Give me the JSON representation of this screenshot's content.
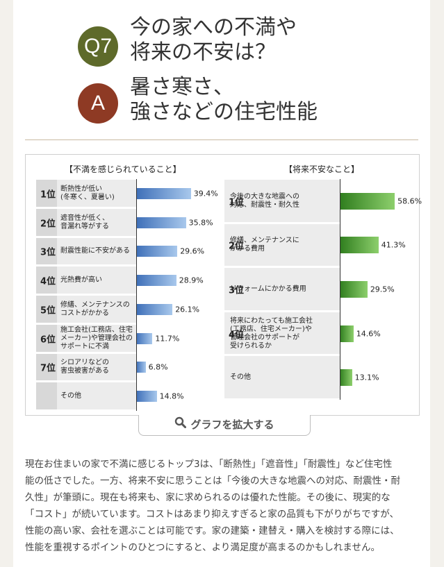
{
  "header": {
    "question_badge": "Q7",
    "question": "今の家への不満や\n将来の不安は？",
    "answer_badge": "A",
    "answer": "暑さ寒さ、\n強さなどの住宅性能"
  },
  "colors": {
    "question_badge": "#5e6a2a",
    "answer_badge": "#8e3a24",
    "left_bars": "#3e6fb8",
    "right_bars": "#2f7d1e"
  },
  "chart_data": [
    {
      "type": "bar",
      "orientation": "horizontal",
      "title": "【不満を感じられていること】",
      "ranks": [
        "1位",
        "2位",
        "3位",
        "4位",
        "5位",
        "6位",
        "7位",
        ""
      ],
      "categories": [
        "断熱性が低い\n(冬寒く、夏暑い)",
        "遮音性が低く、\n音漏れ等がする",
        "耐震性能に不安がある",
        "光熱費が高い",
        "修繕、メンテナンスの\nコストがかかる",
        "施工会社(工務店、住宅\nメーカー)や管理会社の\nサポートに不満",
        "シロアリなどの\n害虫被害がある",
        "その他"
      ],
      "values": [
        39.4,
        35.8,
        29.6,
        28.9,
        26.1,
        11.7,
        6.8,
        14.8
      ],
      "value_labels": [
        "39.4%",
        "35.8%",
        "29.6%",
        "28.9%",
        "26.1%",
        "11.7%",
        "6.8%",
        "14.8%"
      ],
      "unit": "%"
    },
    {
      "type": "bar",
      "orientation": "horizontal",
      "title": "【将来不安なこと】",
      "ranks": [
        "1位",
        "2位",
        "3位",
        "4位",
        ""
      ],
      "categories": [
        "今後の大きな地震への\n対応、耐震性・耐久性",
        "修繕、メンテナンスに\nかかる費用",
        "リフォームにかかる費用",
        "将来にわたっても施工会社\n(工務店、住宅メーカー)や\n管理会社のサポートが\n受けられるか",
        "その他"
      ],
      "values": [
        58.6,
        41.3,
        29.5,
        14.6,
        13.1
      ],
      "value_labels": [
        "58.6%",
        "41.3%",
        "29.5%",
        "14.6%",
        "13.1%"
      ],
      "unit": "%"
    }
  ],
  "enlarge_button": {
    "label": "グラフを拡大する",
    "icon": "magnifier-icon"
  },
  "body": {
    "paragraph": "現在お住まいの家で不満に感じるトップ3は、「断熱性」「遮音性」「耐震性」など住宅性\n能の低さでした。一方、将来不安に思うことは「今後の大きな地震への対応、耐震性・耐\n久性」が筆頭に。現在も将来も、家に求められるのは優れた性能。その後に、現実的な\n「コスト」が続いています。コストはあまり抑えすぎると家の品質も下がりがちですが、\n性能の高い家、会社を選ぶことは可能です。家の建築・建替え・購入を検討する際には、\n性能を重視するポイントのひとつにすると、より満足度が高まるのかもしれません。"
  }
}
